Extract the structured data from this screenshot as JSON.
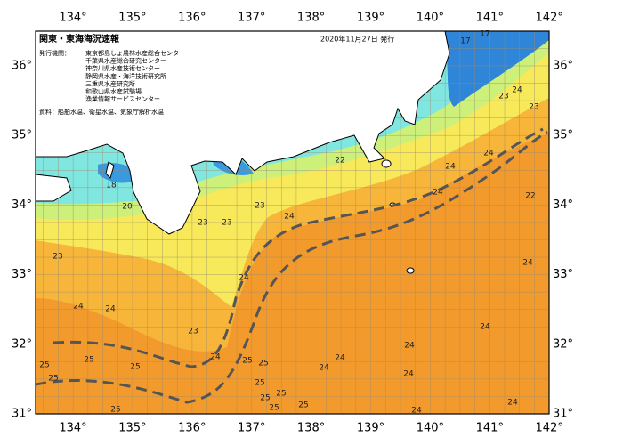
{
  "header": {
    "title": "関東・東海海況速報",
    "date": "2020年11月27日 発行"
  },
  "issuers": {
    "label": "発行機関：",
    "items": [
      "東京都島しょ農林水産総合センター",
      "千葉県水産総合研究センター",
      "神奈川県水産技術センター",
      "静岡県水産・海洋技術研究所",
      "三重県水産研究所",
      "和歌山県水産試験場",
      "漁業情報サービスセンター"
    ]
  },
  "source": "資料：船舶水温、衛星水温、気象庁解析水温",
  "lon_labels": [
    "134°",
    "135°",
    "136°",
    "137°",
    "138°",
    "139°",
    "140°",
    "141°",
    "142°"
  ],
  "lat_labels": [
    "36°",
    "35°",
    "34°",
    "33°",
    "32°",
    "31°"
  ],
  "contour_labels": [
    "17",
    "17",
    "23",
    "24",
    "23",
    "22",
    "24",
    "24",
    "22",
    "24",
    "23",
    "23",
    "23",
    "24",
    "20",
    "18",
    "23",
    "24",
    "24",
    "24",
    "23",
    "24",
    "25",
    "25",
    "25",
    "25",
    "24",
    "24",
    "24",
    "25",
    "25",
    "25",
    "25",
    "25",
    "25",
    "25",
    "25",
    "24",
    "24",
    "24",
    "24",
    "24"
  ]
}
